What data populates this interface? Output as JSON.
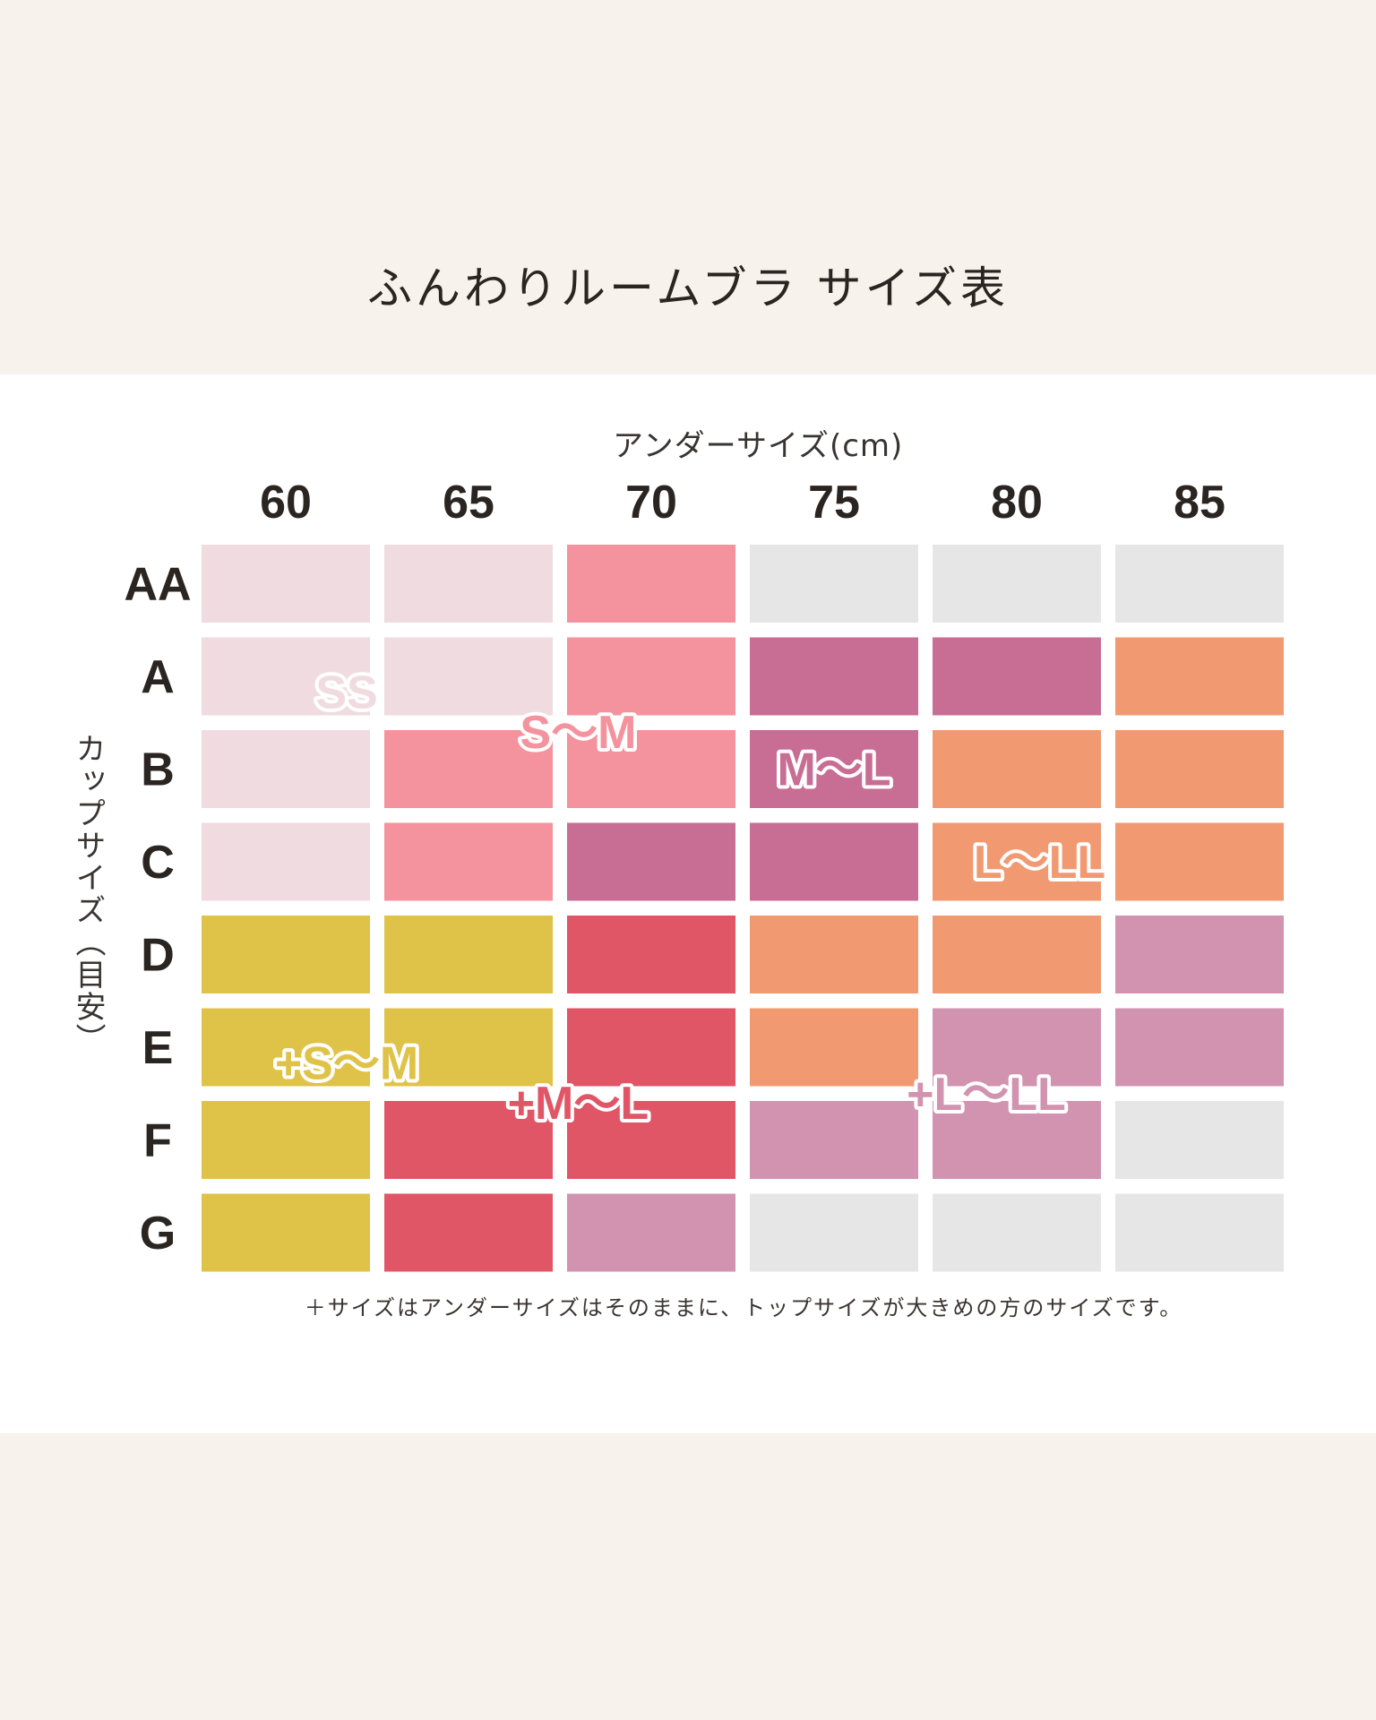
{
  "title": "ふんわりルームブラ サイズ表",
  "footnote": "＋サイズはアンダーサイズはそのままに、トップサイズが大きめの方のサイズです。",
  "chart_data": {
    "type": "table",
    "xlabel": "アンダーサイズ(cm)",
    "ylabel": "カップサイズ（目安）",
    "columns": [
      "60",
      "65",
      "70",
      "75",
      "80",
      "85"
    ],
    "rows": [
      "AA",
      "A",
      "B",
      "C",
      "D",
      "E",
      "F",
      "G"
    ],
    "cells": [
      [
        "SS",
        "SS",
        "S〜M",
        null,
        null,
        null
      ],
      [
        "SS",
        "SS",
        "S〜M",
        "M〜L",
        "M〜L",
        "L〜LL"
      ],
      [
        "SS",
        "S〜M",
        "S〜M",
        "M〜L",
        "L〜LL",
        "L〜LL"
      ],
      [
        "SS",
        "S〜M",
        "M〜L",
        "M〜L",
        "L〜LL",
        "L〜LL"
      ],
      [
        "+S〜M",
        "+S〜M",
        "+M〜L",
        "L〜LL",
        "L〜LL",
        "+L〜LL"
      ],
      [
        "+S〜M",
        "+S〜M",
        "+M〜L",
        "L〜LL",
        "+L〜LL",
        "+L〜LL"
      ],
      [
        "+S〜M",
        "+M〜L",
        "+M〜L",
        "+L〜LL",
        "+L〜LL",
        null
      ],
      [
        "+S〜M",
        "+M〜L",
        "+L〜LL",
        null,
        null,
        null
      ]
    ],
    "size_colors": {
      "SS": "#efdbe0",
      "S〜M": "#f4939d",
      "M〜L": "#c86d93",
      "L〜LL": "#f19a72",
      "+S〜M": "#dfc348",
      "+M〜L": "#e05666",
      "+L〜LL": "#d193b0",
      "none": "#e6e6e6"
    },
    "size_labels": [
      "SS",
      "S〜M",
      "M〜L",
      "L〜LL",
      "+S〜M",
      "+M〜L",
      "+L〜LL"
    ]
  }
}
